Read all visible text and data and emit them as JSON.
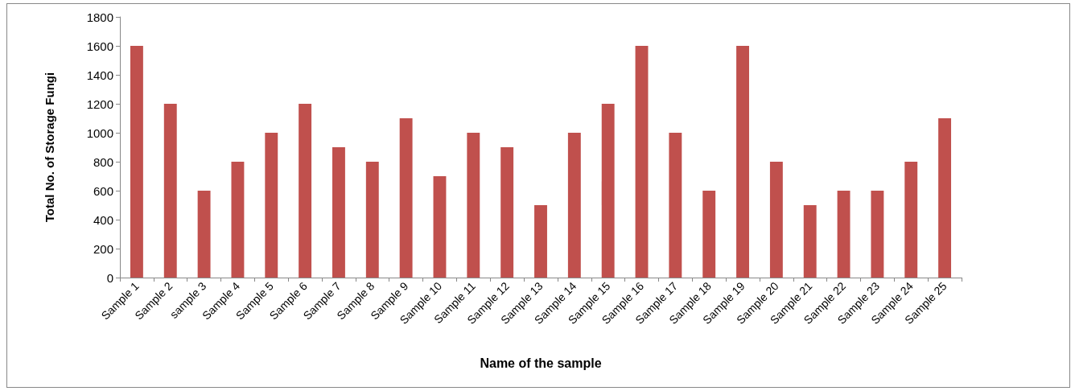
{
  "chart_data": {
    "type": "bar",
    "xlabel": "Name of the sample",
    "ylabel": "Total No. of Storage Fungi",
    "categories": [
      "Sample 1",
      "Sample 2",
      "sample 3",
      "Sample 4",
      "Sample 5",
      "Sample 6",
      "Sample 7",
      "Sample 8",
      "Sample 9",
      "Sample 10",
      "Sample 11",
      "Sample 12",
      "Sample 13",
      "Sample 14",
      "Sample 15",
      "Sample 16",
      "Sample 17",
      "Sample 18",
      "Sample 19",
      "Sample 20",
      "Sample 21",
      "Sample 22",
      "Sample 23",
      "Sample 24",
      "Sample 25"
    ],
    "values": [
      1600,
      1200,
      600,
      800,
      1000,
      1200,
      900,
      800,
      1100,
      700,
      1000,
      900,
      500,
      1000,
      1200,
      1600,
      1000,
      600,
      1600,
      800,
      500,
      600,
      600,
      800,
      1100
    ],
    "color": "#c0504d",
    "ylim": [
      0,
      1800
    ],
    "yticks": [
      0,
      200,
      400,
      600,
      800,
      1000,
      1200,
      1400,
      1600,
      1800
    ],
    "grid": false
  }
}
